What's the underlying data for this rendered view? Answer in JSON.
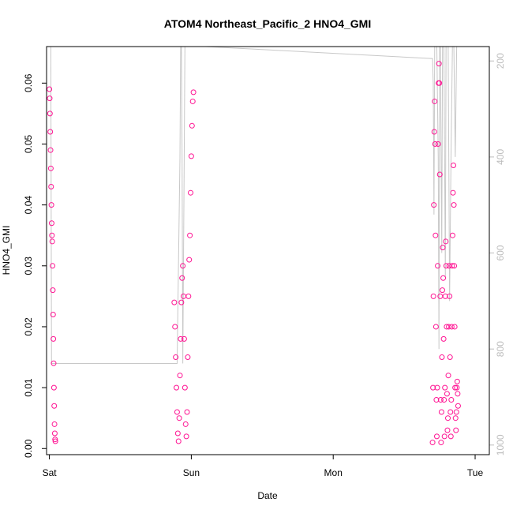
{
  "chart_data": {
    "type": "scatter",
    "title": "ATOM4 Northeast_Pacific_2 HNO4_GMI",
    "xlabel": "Date",
    "ylabel": "HNO4_GMI",
    "x_unit": "days (0 = Sat 00:00)",
    "xlim": [
      -0.02,
      3.1
    ],
    "ylim": [
      -0.001,
      0.066
    ],
    "x_ticks": [
      {
        "value": 0,
        "label": "Sat"
      },
      {
        "value": 1,
        "label": "Sun"
      },
      {
        "value": 2,
        "label": "Mon"
      },
      {
        "value": 3,
        "label": "Tue"
      }
    ],
    "y_ticks": [
      0.0,
      0.01,
      0.02,
      0.03,
      0.04,
      0.05,
      0.06
    ],
    "y_tick_labels": [
      "0.00",
      "0.01",
      "0.02",
      "0.03",
      "0.04",
      "0.05",
      "0.06"
    ],
    "y2_ticks": [
      200,
      400,
      600,
      800,
      1000
    ],
    "y2lim": [
      1020,
      170
    ],
    "series": [
      {
        "kind": "points",
        "color": "#ff1493",
        "marker": "open-circle",
        "values": [
          [
            0.0,
            0.059
          ],
          [
            0.002,
            0.0575
          ],
          [
            0.004,
            0.055
          ],
          [
            0.006,
            0.052
          ],
          [
            0.008,
            0.049
          ],
          [
            0.01,
            0.046
          ],
          [
            0.012,
            0.043
          ],
          [
            0.014,
            0.04
          ],
          [
            0.016,
            0.037
          ],
          [
            0.018,
            0.035
          ],
          [
            0.02,
            0.034
          ],
          [
            0.022,
            0.03
          ],
          [
            0.024,
            0.026
          ],
          [
            0.026,
            0.022
          ],
          [
            0.028,
            0.018
          ],
          [
            0.03,
            0.014
          ],
          [
            0.032,
            0.01
          ],
          [
            0.034,
            0.007
          ],
          [
            0.036,
            0.004
          ],
          [
            0.038,
            0.0025
          ],
          [
            0.04,
            0.0015
          ],
          [
            0.042,
            0.0012
          ],
          [
            0.88,
            0.024
          ],
          [
            0.885,
            0.02
          ],
          [
            0.89,
            0.015
          ],
          [
            0.895,
            0.01
          ],
          [
            0.9,
            0.006
          ],
          [
            0.905,
            0.0025
          ],
          [
            0.91,
            0.0012
          ],
          [
            0.915,
            0.005
          ],
          [
            0.92,
            0.012
          ],
          [
            0.925,
            0.018
          ],
          [
            0.93,
            0.024
          ],
          [
            0.935,
            0.028
          ],
          [
            0.94,
            0.03
          ],
          [
            0.945,
            0.025
          ],
          [
            0.95,
            0.018
          ],
          [
            0.955,
            0.01
          ],
          [
            0.96,
            0.004
          ],
          [
            0.965,
            0.002
          ],
          [
            0.97,
            0.006
          ],
          [
            0.975,
            0.015
          ],
          [
            0.98,
            0.025
          ],
          [
            0.985,
            0.031
          ],
          [
            0.99,
            0.035
          ],
          [
            0.995,
            0.042
          ],
          [
            1.0,
            0.048
          ],
          [
            1.005,
            0.053
          ],
          [
            1.01,
            0.057
          ],
          [
            1.015,
            0.0585
          ],
          [
            2.7,
            0.001
          ],
          [
            2.703,
            0.01
          ],
          [
            2.706,
            0.025
          ],
          [
            2.709,
            0.04
          ],
          [
            2.712,
            0.052
          ],
          [
            2.715,
            0.057
          ],
          [
            2.718,
            0.05
          ],
          [
            2.721,
            0.035
          ],
          [
            2.724,
            0.02
          ],
          [
            2.727,
            0.008
          ],
          [
            2.73,
            0.002
          ],
          [
            2.733,
            0.01
          ],
          [
            2.736,
            0.03
          ],
          [
            2.739,
            0.05
          ],
          [
            2.742,
            0.06
          ],
          [
            2.745,
            0.0632
          ],
          [
            2.748,
            0.06
          ],
          [
            2.751,
            0.045
          ],
          [
            2.754,
            0.025
          ],
          [
            2.757,
            0.008
          ],
          [
            2.76,
            0.001
          ],
          [
            2.763,
            0.006
          ],
          [
            2.766,
            0.015
          ],
          [
            2.769,
            0.026
          ],
          [
            2.772,
            0.033
          ],
          [
            2.775,
            0.028
          ],
          [
            2.778,
            0.018
          ],
          [
            2.781,
            0.008
          ],
          [
            2.784,
            0.002
          ],
          [
            2.787,
            0.01
          ],
          [
            2.79,
            0.025
          ],
          [
            2.793,
            0.034
          ],
          [
            2.796,
            0.03
          ],
          [
            2.799,
            0.02
          ],
          [
            2.802,
            0.009
          ],
          [
            2.805,
            0.003
          ],
          [
            2.808,
            0.005
          ],
          [
            2.811,
            0.012
          ],
          [
            2.814,
            0.02
          ],
          [
            2.817,
            0.03
          ],
          [
            2.82,
            0.025
          ],
          [
            2.823,
            0.015
          ],
          [
            2.826,
            0.006
          ],
          [
            2.829,
            0.002
          ],
          [
            2.832,
            0.008
          ],
          [
            2.835,
            0.02
          ],
          [
            2.838,
            0.03
          ],
          [
            2.841,
            0.035
          ],
          [
            2.844,
            0.042
          ],
          [
            2.847,
            0.0465
          ],
          [
            2.85,
            0.04
          ],
          [
            2.853,
            0.03
          ],
          [
            2.856,
            0.02
          ],
          [
            2.859,
            0.01
          ],
          [
            2.862,
            0.005
          ],
          [
            2.865,
            0.003
          ],
          [
            2.868,
            0.006
          ],
          [
            2.871,
            0.01
          ],
          [
            2.874,
            0.011
          ],
          [
            2.877,
            0.009
          ],
          [
            2.88,
            0.007
          ]
        ]
      },
      {
        "kind": "line",
        "color": "#c8c8c8",
        "axis": "right",
        "values": [
          [
            0.0,
            170
          ],
          [
            0.01,
            170
          ],
          [
            0.015,
            830
          ],
          [
            0.025,
            830
          ],
          [
            0.5,
            830
          ],
          [
            0.9,
            830
          ],
          [
            0.92,
            400
          ],
          [
            0.925,
            170
          ],
          [
            0.93,
            170
          ],
          [
            0.935,
            400
          ],
          [
            0.94,
            830
          ],
          [
            0.95,
            400
          ],
          [
            0.955,
            170
          ],
          [
            0.96,
            170
          ],
          [
            1.0,
            170
          ],
          [
            1.1,
            170
          ],
          [
            2.7,
            195
          ],
          [
            2.705,
            250
          ],
          [
            2.71,
            520
          ],
          [
            2.715,
            170
          ],
          [
            2.72,
            170
          ],
          [
            2.73,
            170
          ],
          [
            2.74,
            400
          ],
          [
            2.745,
            800
          ],
          [
            2.75,
            170
          ],
          [
            2.755,
            170
          ],
          [
            2.765,
            600
          ],
          [
            2.77,
            170
          ],
          [
            2.78,
            170
          ],
          [
            2.79,
            650
          ],
          [
            2.795,
            170
          ],
          [
            2.81,
            170
          ],
          [
            2.82,
            700
          ],
          [
            2.83,
            400
          ],
          [
            2.84,
            170
          ],
          [
            2.85,
            170
          ],
          [
            2.86,
            400
          ],
          [
            2.87,
            170
          ],
          [
            2.88,
            170
          ]
        ]
      }
    ]
  }
}
